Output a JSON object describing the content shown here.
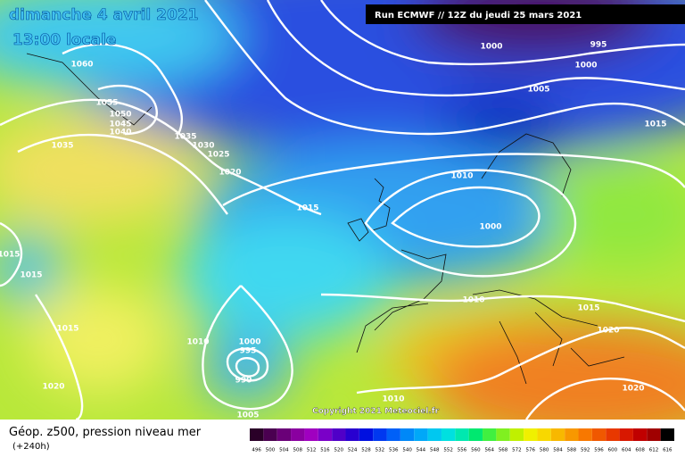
{
  "header": {
    "title": "dimanche 4 avril 2021",
    "subtitle": "13:00 locale",
    "run": "Run ECMWF // 12Z du jeudi 25 mars 2021"
  },
  "map": {
    "isobar_labels": [
      1060,
      1055,
      1050,
      1045,
      1040,
      1035,
      1035,
      1030,
      1025,
      1020,
      1015,
      1010,
      1000,
      995,
      1000,
      1005,
      1015,
      1000,
      1015,
      1015,
      1010,
      1015,
      1020,
      1015,
      1010,
      1000,
      995,
      990,
      1020,
      1010,
      1005,
      1020
    ],
    "copyright": "Copyright 2021 Meteociel.fr"
  },
  "footer": {
    "caption": "Géop. z500, pression niveau mer",
    "lead": "(+240h)"
  },
  "legend": {
    "labels": [
      496,
      500,
      504,
      508,
      512,
      516,
      520,
      524,
      528,
      532,
      536,
      540,
      544,
      548,
      552,
      556,
      560,
      564,
      568,
      572,
      576,
      580,
      584,
      588,
      592,
      596,
      600,
      604,
      608,
      612,
      616
    ],
    "colors": [
      "#2a0028",
      "#4a0050",
      "#6a0078",
      "#8a00a0",
      "#a000c0",
      "#7a00c8",
      "#5000c8",
      "#2800d0",
      "#0010e0",
      "#0038f0",
      "#0060f8",
      "#0088f8",
      "#00a8f8",
      "#00c8f0",
      "#00e0e0",
      "#00e8b0",
      "#00e870",
      "#40f040",
      "#80f020",
      "#c0f000",
      "#f0f000",
      "#f8d800",
      "#f8b800",
      "#f89800",
      "#f87800",
      "#f05800",
      "#e83800",
      "#d81800",
      "#c00000",
      "#a00000",
      "#000000"
    ]
  }
}
